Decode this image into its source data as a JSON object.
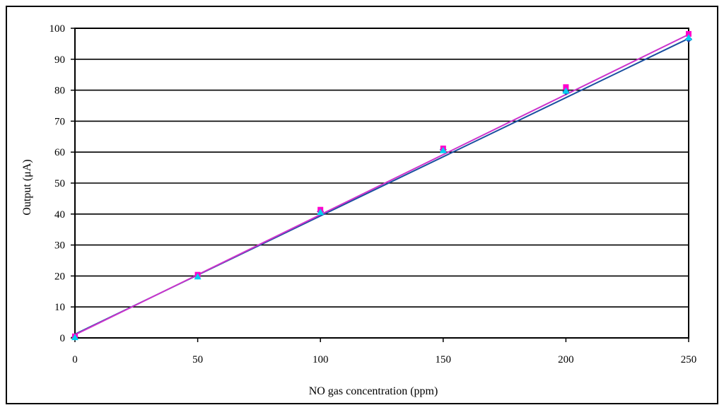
{
  "chart_data": {
    "type": "scatter",
    "title": "",
    "xlabel": "NO gas concentration (ppm)",
    "ylabel": "Output (μA)",
    "xlim": [
      0,
      250
    ],
    "ylim": [
      0,
      100
    ],
    "x_ticks": [
      0,
      50,
      100,
      150,
      200,
      250
    ],
    "y_ticks": [
      0,
      10,
      20,
      30,
      40,
      50,
      60,
      70,
      80,
      90,
      100
    ],
    "grid": "horizontal",
    "legend": "none",
    "series": [
      {
        "x": [
          0,
          50,
          100,
          150,
          200,
          250
        ],
        "values": [
          0.3,
          20.0,
          40.8,
          60.8,
          79.5,
          96.5
        ],
        "color": "#1a4fa0",
        "marker": "diamond",
        "marker_color": "#1f3ea8",
        "trendline": {
          "x": [
            0,
            250
          ],
          "y": [
            1.2,
            96.7
          ]
        }
      },
      {
        "x": [
          0,
          50,
          100,
          150,
          200,
          250
        ],
        "values": [
          0.5,
          20.4,
          41.4,
          61.2,
          81.0,
          98.2
        ],
        "color": "#cc33cc",
        "marker": "square",
        "marker_color": "#ff00cc",
        "trendline": {
          "x": [
            0,
            250
          ],
          "y": [
            1.0,
            98.0
          ]
        }
      },
      {
        "x": [
          0,
          50,
          100,
          150,
          200,
          250
        ],
        "values": [
          0.2,
          19.8,
          40.6,
          60.6,
          79.8,
          97.0
        ],
        "color": "#00c8e0",
        "marker": "triangle",
        "marker_color": "#00d0f0"
      }
    ]
  }
}
